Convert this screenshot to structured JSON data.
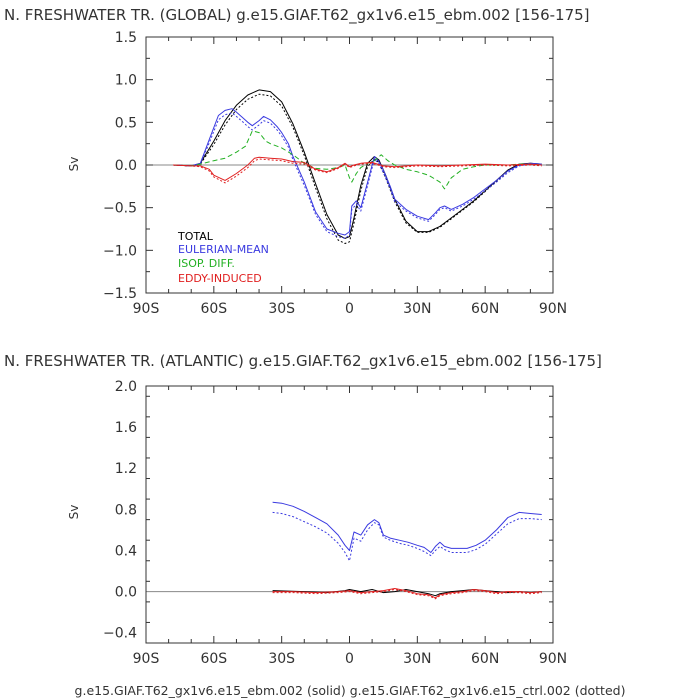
{
  "colors": {
    "TOTAL": "#000000",
    "EULERIAN-MEAN": "#3a3ae0",
    "ISOP. DIFF.": "#22b022",
    "EDDY-INDUCED": "#e02020",
    "axis": "#333333",
    "zero_line": "#888888"
  },
  "footer": "g.e15.GIAF.T62_gx1v6.e15_ebm.002 (solid) g.e15.GIAF.T62_gx1v6.e15_ctrl.002 (dotted)",
  "chart_data": [
    {
      "id": "global",
      "type": "line",
      "title": "N. FRESHWATER TR. (GLOBAL) g.e15.GIAF.T62_gx1v6.e15_ebm.002 [156-175]",
      "xlabel": "",
      "ylabel": "Sv",
      "xlim": [
        -90,
        90
      ],
      "ylim": [
        -1.5,
        1.5
      ],
      "x_ticks": [
        -90,
        -60,
        -30,
        0,
        30,
        60,
        90
      ],
      "x_tick_labels": [
        "90S",
        "60S",
        "30S",
        "0",
        "30N",
        "60N",
        "90N"
      ],
      "y_ticks": [
        -1.5,
        -1.0,
        -0.5,
        0.0,
        0.5,
        1.0,
        1.5
      ],
      "y_tick_labels": [
        "−1.5",
        "−1.0",
        "−0.5",
        "0.0",
        "0.5",
        "1.0",
        "1.5"
      ],
      "zero_line": true,
      "legend": {
        "position": "bottom-left",
        "entries": [
          "TOTAL",
          "EULERIAN-MEAN",
          "ISOP. DIFF.",
          "EDDY-INDUCED"
        ]
      },
      "series": [
        {
          "name": "TOTAL",
          "style": "solid",
          "x": [
            -78,
            -70,
            -66,
            -60,
            -55,
            -50,
            -45,
            -40,
            -35,
            -30,
            -25,
            -20,
            -15,
            -10,
            -5,
            -2,
            0,
            2,
            5,
            8,
            11,
            13,
            16,
            20,
            25,
            30,
            35,
            40,
            45,
            50,
            55,
            60,
            65,
            70,
            75,
            80,
            85
          ],
          "y": [
            0,
            -0.01,
            0.02,
            0.28,
            0.52,
            0.7,
            0.82,
            0.88,
            0.86,
            0.74,
            0.48,
            0.15,
            -0.22,
            -0.58,
            -0.82,
            -0.86,
            -0.84,
            -0.62,
            -0.24,
            0.02,
            0.1,
            0.06,
            -0.12,
            -0.4,
            -0.66,
            -0.78,
            -0.78,
            -0.72,
            -0.62,
            -0.52,
            -0.42,
            -0.3,
            -0.18,
            -0.06,
            0.01,
            0.02,
            0.01
          ]
        },
        {
          "name": "TOTAL",
          "style": "dotted",
          "x": [
            -78,
            -70,
            -66,
            -60,
            -55,
            -50,
            -45,
            -40,
            -35,
            -30,
            -25,
            -20,
            -15,
            -10,
            -5,
            -2,
            0,
            2,
            5,
            8,
            11,
            13,
            16,
            20,
            25,
            30,
            35,
            40,
            45,
            50,
            55,
            60,
            65,
            70,
            75,
            80,
            85
          ],
          "y": [
            0,
            -0.01,
            0.01,
            0.24,
            0.47,
            0.65,
            0.77,
            0.83,
            0.81,
            0.69,
            0.44,
            0.11,
            -0.27,
            -0.63,
            -0.88,
            -0.92,
            -0.9,
            -0.68,
            -0.3,
            -0.02,
            0.07,
            0.03,
            -0.15,
            -0.43,
            -0.68,
            -0.79,
            -0.79,
            -0.73,
            -0.63,
            -0.53,
            -0.43,
            -0.31,
            -0.19,
            -0.07,
            0,
            0.01,
            0
          ]
        },
        {
          "name": "EULERIAN-MEAN",
          "style": "solid",
          "x": [
            -78,
            -70,
            -66,
            -62,
            -58,
            -55,
            -52,
            -50,
            -47,
            -45,
            -43,
            -40,
            -38,
            -35,
            -32,
            -30,
            -27,
            -25,
            -20,
            -15,
            -10,
            -5,
            -2,
            0,
            1,
            3,
            5,
            8,
            11,
            13,
            15,
            18,
            20,
            25,
            30,
            35,
            38,
            40,
            42,
            45,
            50,
            55,
            60,
            65,
            70,
            75,
            80,
            85
          ],
          "y": [
            0,
            -0.01,
            0.02,
            0.3,
            0.58,
            0.64,
            0.66,
            0.62,
            0.55,
            0.5,
            0.46,
            0.52,
            0.57,
            0.53,
            0.45,
            0.38,
            0.25,
            0.1,
            -0.2,
            -0.55,
            -0.75,
            -0.8,
            -0.82,
            -0.78,
            -0.48,
            -0.42,
            -0.5,
            -0.2,
            0.1,
            0.04,
            -0.06,
            -0.25,
            -0.4,
            -0.52,
            -0.6,
            -0.64,
            -0.56,
            -0.5,
            -0.48,
            -0.52,
            -0.46,
            -0.38,
            -0.28,
            -0.18,
            -0.07,
            0,
            0.02,
            0.01
          ]
        },
        {
          "name": "EULERIAN-MEAN",
          "style": "dotted",
          "x": [
            -78,
            -70,
            -66,
            -62,
            -58,
            -55,
            -52,
            -50,
            -47,
            -45,
            -43,
            -40,
            -38,
            -35,
            -32,
            -30,
            -27,
            -25,
            -20,
            -15,
            -10,
            -5,
            -2,
            0,
            1,
            3,
            5,
            8,
            11,
            13,
            15,
            18,
            20,
            25,
            30,
            35,
            38,
            40,
            42,
            45,
            50,
            55,
            60,
            65,
            70,
            75,
            80,
            85
          ],
          "y": [
            0,
            -0.01,
            0.01,
            0.26,
            0.53,
            0.59,
            0.61,
            0.57,
            0.5,
            0.45,
            0.41,
            0.47,
            0.52,
            0.49,
            0.41,
            0.34,
            0.21,
            0.06,
            -0.24,
            -0.58,
            -0.78,
            -0.84,
            -0.86,
            -0.82,
            -0.52,
            -0.46,
            -0.54,
            -0.24,
            0.07,
            0.01,
            -0.09,
            -0.28,
            -0.43,
            -0.54,
            -0.62,
            -0.66,
            -0.58,
            -0.52,
            -0.5,
            -0.54,
            -0.48,
            -0.4,
            -0.3,
            -0.2,
            -0.09,
            -0.01,
            0.01,
            0
          ]
        },
        {
          "name": "ISOP. DIFF.",
          "style": "dashed",
          "x": [
            -78,
            -70,
            -66,
            -60,
            -55,
            -50,
            -46,
            -43,
            -40,
            -37,
            -35,
            -30,
            -25,
            -20,
            -15,
            -10,
            -5,
            -2,
            0,
            1,
            3,
            5,
            8,
            11,
            14,
            17,
            20,
            25,
            30,
            35,
            40,
            42,
            45,
            50,
            55,
            60,
            65,
            70,
            75,
            80,
            85
          ],
          "y": [
            0,
            -0.01,
            0.01,
            0.05,
            0.08,
            0.15,
            0.22,
            0.4,
            0.38,
            0.28,
            0.25,
            0.2,
            0.12,
            0.02,
            -0.04,
            -0.05,
            -0.03,
            0.0,
            -0.15,
            -0.2,
            -0.1,
            -0.03,
            0.02,
            0.05,
            0.12,
            0.05,
            0.0,
            -0.05,
            -0.08,
            -0.12,
            -0.2,
            -0.28,
            -0.15,
            -0.05,
            -0.02,
            0,
            0,
            0,
            0.01,
            0.01,
            0
          ]
        },
        {
          "name": "EDDY-INDUCED",
          "style": "solid",
          "x": [
            -78,
            -70,
            -66,
            -62,
            -60,
            -55,
            -50,
            -45,
            -42,
            -40,
            -35,
            -30,
            -25,
            -20,
            -15,
            -10,
            -5,
            -2,
            0,
            2,
            5,
            10,
            15,
            20,
            30,
            40,
            50,
            60,
            70,
            80,
            85
          ],
          "y": [
            0,
            -0.01,
            -0.01,
            -0.05,
            -0.12,
            -0.18,
            -0.1,
            0.0,
            0.08,
            0.09,
            0.08,
            0.07,
            0.04,
            0.03,
            -0.05,
            -0.08,
            -0.03,
            0.02,
            -0.02,
            0.0,
            0.02,
            0.03,
            -0.01,
            -0.02,
            0,
            -0.01,
            0,
            0.01,
            0,
            0.01,
            0
          ]
        },
        {
          "name": "EDDY-INDUCED",
          "style": "dotted",
          "x": [
            -78,
            -70,
            -66,
            -62,
            -60,
            -55,
            -50,
            -45,
            -42,
            -40,
            -35,
            -30,
            -25,
            -20,
            -15,
            -10,
            -5,
            -2,
            0,
            2,
            5,
            10,
            15,
            20,
            30,
            40,
            50,
            60,
            70,
            80,
            85
          ],
          "y": [
            0,
            -0.01,
            -0.02,
            -0.07,
            -0.14,
            -0.21,
            -0.13,
            -0.03,
            0.05,
            0.07,
            0.06,
            0.05,
            0.02,
            0.01,
            -0.06,
            -0.09,
            -0.04,
            0.01,
            -0.03,
            -0.01,
            0.01,
            0.02,
            -0.02,
            -0.03,
            -0.01,
            -0.02,
            -0.01,
            0,
            -0.01,
            0,
            -0.01
          ]
        }
      ]
    },
    {
      "id": "atlantic",
      "type": "line",
      "title": "N. FRESHWATER TR. (ATLANTIC) g.e15.GIAF.T62_gx1v6.e15_ebm.002 [156-175]",
      "xlabel": "",
      "ylabel": "Sv",
      "xlim": [
        -90,
        90
      ],
      "ylim": [
        -0.5,
        2.0
      ],
      "x_ticks": [
        -90,
        -60,
        -30,
        0,
        30,
        60,
        90
      ],
      "x_tick_labels": [
        "90S",
        "60S",
        "30S",
        "0",
        "30N",
        "60N",
        "90N"
      ],
      "y_ticks": [
        -0.4,
        0.0,
        0.4,
        0.8,
        1.2,
        1.6,
        2.0
      ],
      "y_tick_labels": [
        "−0.4",
        "0.0",
        "0.4",
        "0.8",
        "1.2",
        "1.6",
        "2.0"
      ],
      "zero_line": true,
      "series": [
        {
          "name": "EULERIAN-MEAN",
          "style": "solid",
          "x": [
            -34,
            -30,
            -25,
            -20,
            -15,
            -10,
            -5,
            -2,
            0,
            2,
            5,
            8,
            11,
            13,
            15,
            18,
            22,
            26,
            30,
            33,
            36,
            38,
            40,
            42,
            45,
            48,
            52,
            56,
            60,
            65,
            70,
            75,
            80,
            85
          ],
          "y": [
            0.87,
            0.86,
            0.83,
            0.78,
            0.72,
            0.66,
            0.55,
            0.45,
            0.4,
            0.58,
            0.55,
            0.65,
            0.7,
            0.67,
            0.55,
            0.52,
            0.5,
            0.48,
            0.45,
            0.43,
            0.38,
            0.44,
            0.48,
            0.44,
            0.42,
            0.42,
            0.42,
            0.45,
            0.5,
            0.6,
            0.72,
            0.77,
            0.76,
            0.75
          ]
        },
        {
          "name": "EULERIAN-MEAN",
          "style": "dotted",
          "x": [
            -34,
            -30,
            -25,
            -20,
            -15,
            -10,
            -5,
            -2,
            0,
            2,
            5,
            8,
            11,
            13,
            15,
            18,
            22,
            26,
            30,
            33,
            36,
            38,
            40,
            42,
            45,
            48,
            52,
            56,
            60,
            65,
            70,
            75,
            80,
            85
          ],
          "y": [
            0.77,
            0.76,
            0.73,
            0.68,
            0.63,
            0.57,
            0.47,
            0.38,
            0.3,
            0.52,
            0.49,
            0.6,
            0.67,
            0.65,
            0.53,
            0.5,
            0.47,
            0.45,
            0.42,
            0.39,
            0.35,
            0.4,
            0.44,
            0.41,
            0.38,
            0.38,
            0.38,
            0.41,
            0.46,
            0.56,
            0.66,
            0.71,
            0.71,
            0.7
          ]
        },
        {
          "name": "TOTAL",
          "style": "solid",
          "x": [
            -34,
            -20,
            -10,
            -2,
            0,
            5,
            10,
            15,
            20,
            25,
            30,
            35,
            38,
            40,
            45,
            50,
            55,
            60,
            65,
            70,
            75,
            80,
            85
          ],
          "y": [
            0.01,
            0.0,
            -0.01,
            0.01,
            0.02,
            0.0,
            0.02,
            -0.01,
            0.0,
            0.02,
            0.0,
            -0.02,
            -0.04,
            -0.02,
            0.0,
            0.01,
            0.02,
            0.01,
            0.0,
            -0.01,
            0.0,
            -0.01,
            0.0
          ]
        },
        {
          "name": "EDDY-INDUCED",
          "style": "solid",
          "x": [
            -34,
            -25,
            -15,
            -5,
            0,
            5,
            10,
            15,
            20,
            25,
            30,
            35,
            38,
            40,
            45,
            50,
            55,
            60,
            65,
            70,
            75,
            80,
            85
          ],
          "y": [
            0.0,
            0.0,
            -0.01,
            0.0,
            0.01,
            -0.01,
            0.0,
            0.01,
            0.03,
            0.01,
            -0.02,
            -0.03,
            -0.06,
            -0.03,
            -0.01,
            0.0,
            0.02,
            0.01,
            -0.01,
            0.0,
            0.0,
            -0.01,
            0.0
          ]
        },
        {
          "name": "EDDY-INDUCED",
          "style": "dotted",
          "x": [
            -34,
            -25,
            -15,
            -5,
            0,
            5,
            10,
            15,
            20,
            25,
            30,
            35,
            38,
            40,
            45,
            50,
            55,
            60,
            65,
            70,
            75,
            80,
            85
          ],
          "y": [
            -0.01,
            -0.01,
            -0.02,
            -0.01,
            0.0,
            -0.02,
            -0.01,
            0.0,
            0.02,
            0.0,
            -0.03,
            -0.04,
            -0.07,
            -0.04,
            -0.02,
            -0.01,
            0.01,
            0.0,
            -0.02,
            -0.01,
            -0.01,
            -0.02,
            -0.01
          ]
        }
      ]
    }
  ]
}
